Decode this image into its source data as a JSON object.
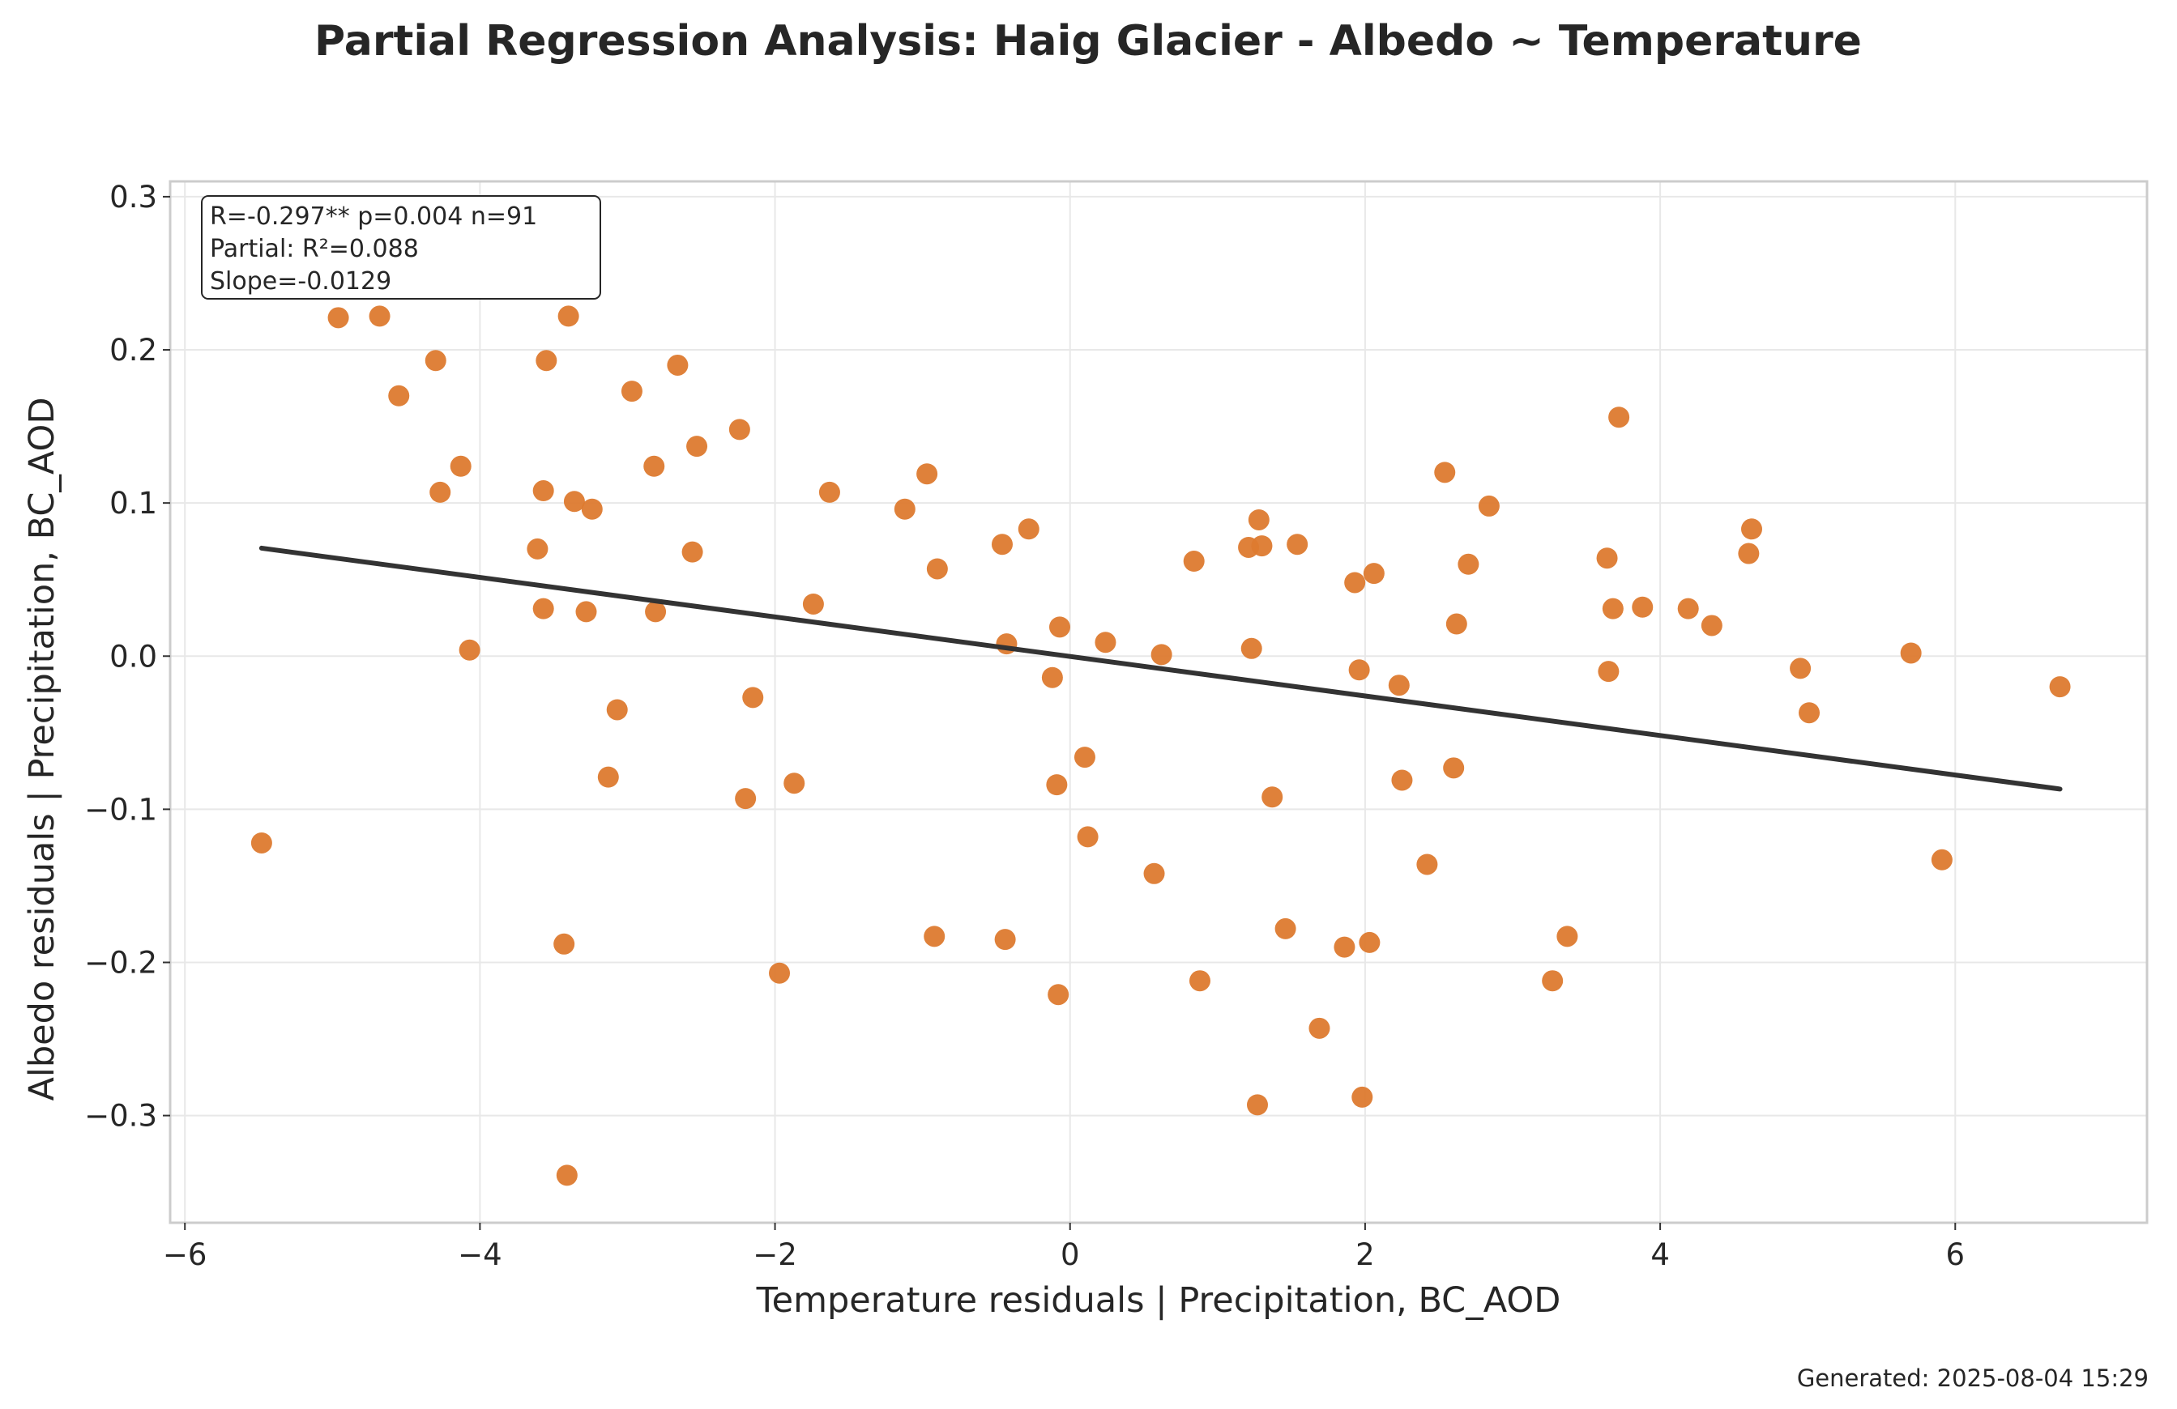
{
  "chart_data": {
    "type": "scatter",
    "title": "Partial Regression Analysis: Haig Glacier - Albedo ~ Temperature",
    "xlabel": "Temperature residuals | Precipitation, BC_AOD",
    "ylabel": "Albedo residuals | Precipitation, BC_AOD",
    "xlim": [
      -6.1,
      7.3
    ],
    "ylim": [
      -0.37,
      0.31
    ],
    "x_ticks": [
      -6,
      -4,
      -2,
      0,
      2,
      4,
      6
    ],
    "y_ticks": [
      -0.3,
      -0.2,
      -0.1,
      0.0,
      0.1,
      0.2,
      0.3
    ],
    "x_tick_labels": [
      "−6",
      "−4",
      "−2",
      "0",
      "2",
      "4",
      "6"
    ],
    "y_tick_labels": [
      "−0.3",
      "−0.2",
      "−0.1",
      "0.0",
      "0.1",
      "0.2",
      "0.3"
    ],
    "grid": true,
    "point_color": "#dd7a2f",
    "line_color": "#333333",
    "series": [
      {
        "name": "residuals",
        "points": [
          [
            -5.48,
            -0.122
          ],
          [
            -4.96,
            0.221
          ],
          [
            -4.68,
            0.222
          ],
          [
            -4.55,
            0.17
          ],
          [
            -4.3,
            0.193
          ],
          [
            -4.27,
            0.107
          ],
          [
            -4.13,
            0.124
          ],
          [
            -4.07,
            0.004
          ],
          [
            -3.61,
            0.07
          ],
          [
            -3.57,
            0.108
          ],
          [
            -3.57,
            0.031
          ],
          [
            -3.55,
            0.193
          ],
          [
            -3.43,
            -0.188
          ],
          [
            -3.41,
            -0.339
          ],
          [
            -3.4,
            0.222
          ],
          [
            -3.36,
            0.101
          ],
          [
            -3.28,
            0.029
          ],
          [
            -3.24,
            0.096
          ],
          [
            -3.13,
            -0.079
          ],
          [
            -3.07,
            -0.035
          ],
          [
            -2.97,
            0.173
          ],
          [
            -2.82,
            0.124
          ],
          [
            -2.81,
            0.029
          ],
          [
            -2.66,
            0.19
          ],
          [
            -2.56,
            0.068
          ],
          [
            -2.53,
            0.137
          ],
          [
            -2.24,
            0.148
          ],
          [
            -2.2,
            -0.093
          ],
          [
            -2.15,
            -0.027
          ],
          [
            -1.97,
            -0.207
          ],
          [
            -1.87,
            -0.083
          ],
          [
            -1.74,
            0.034
          ],
          [
            -1.63,
            0.107
          ],
          [
            -1.12,
            0.096
          ],
          [
            -0.97,
            0.119
          ],
          [
            -0.92,
            -0.183
          ],
          [
            -0.9,
            0.057
          ],
          [
            -0.46,
            0.073
          ],
          [
            -0.44,
            -0.185
          ],
          [
            -0.43,
            0.008
          ],
          [
            -0.28,
            0.083
          ],
          [
            -0.12,
            -0.014
          ],
          [
            -0.09,
            -0.084
          ],
          [
            -0.08,
            -0.221
          ],
          [
            -0.07,
            0.019
          ],
          [
            0.1,
            -0.066
          ],
          [
            0.12,
            -0.118
          ],
          [
            0.24,
            0.009
          ],
          [
            0.57,
            -0.142
          ],
          [
            0.62,
            0.001
          ],
          [
            0.84,
            0.062
          ],
          [
            0.88,
            -0.212
          ],
          [
            1.21,
            0.071
          ],
          [
            1.23,
            0.005
          ],
          [
            1.27,
            -0.293
          ],
          [
            1.28,
            0.089
          ],
          [
            1.37,
            -0.092
          ],
          [
            1.46,
            -0.178
          ],
          [
            1.54,
            0.073
          ],
          [
            1.69,
            -0.243
          ],
          [
            1.86,
            -0.19
          ],
          [
            1.93,
            0.048
          ],
          [
            1.96,
            -0.009
          ],
          [
            1.98,
            -0.288
          ],
          [
            2.03,
            -0.187
          ],
          [
            2.06,
            0.054
          ],
          [
            2.23,
            -0.019
          ],
          [
            2.25,
            -0.081
          ],
          [
            2.42,
            -0.136
          ],
          [
            2.54,
            0.12
          ],
          [
            2.6,
            -0.073
          ],
          [
            2.62,
            0.021
          ],
          [
            2.7,
            0.06
          ],
          [
            2.84,
            0.098
          ],
          [
            3.27,
            -0.212
          ],
          [
            3.37,
            -0.183
          ],
          [
            3.64,
            0.064
          ],
          [
            3.65,
            -0.01
          ],
          [
            3.68,
            0.031
          ],
          [
            3.72,
            0.156
          ],
          [
            3.88,
            0.032
          ],
          [
            4.19,
            0.031
          ],
          [
            4.35,
            0.02
          ],
          [
            4.6,
            0.067
          ],
          [
            4.62,
            0.083
          ],
          [
            4.95,
            -0.008
          ],
          [
            5.01,
            -0.037
          ],
          [
            5.7,
            0.002
          ],
          [
            5.91,
            -0.133
          ],
          [
            6.71,
            -0.02
          ],
          [
            1.3,
            0.072
          ]
        ]
      }
    ],
    "fit_line": {
      "x": [
        -5.48,
        6.71
      ],
      "y": [
        0.0705,
        -0.0868
      ]
    },
    "stats_text": [
      "R=-0.297**  p=0.004  n=91",
      "Partial: R²=0.088",
      "Slope=-0.0129"
    ],
    "stats_position": "top-left",
    "footer": "Generated: 2025-08-04 15:29"
  }
}
